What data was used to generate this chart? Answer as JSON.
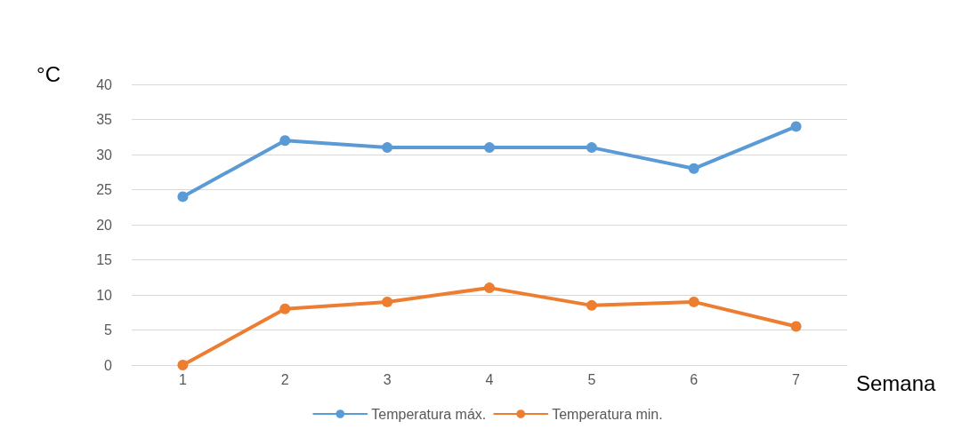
{
  "chart_data": {
    "type": "line",
    "xlabel": "Semana",
    "ylabel": "°C",
    "categories": [
      "1",
      "2",
      "3",
      "4",
      "5",
      "6",
      "7"
    ],
    "series": [
      {
        "name": "Temperatura máx.",
        "color": "#5b9bd5",
        "values": [
          24,
          32,
          31,
          31,
          31,
          28,
          34
        ]
      },
      {
        "name": "Temperatura min.",
        "color": "#ed7d31",
        "values": [
          0,
          8,
          9,
          11,
          8.5,
          9,
          5.5
        ]
      }
    ],
    "ylim": [
      0,
      40
    ],
    "yticks": [
      0,
      5,
      10,
      15,
      20,
      25,
      30,
      35,
      40
    ],
    "grid": "y",
    "legend": "bottom",
    "marker": "circle",
    "line_style": "solid"
  }
}
